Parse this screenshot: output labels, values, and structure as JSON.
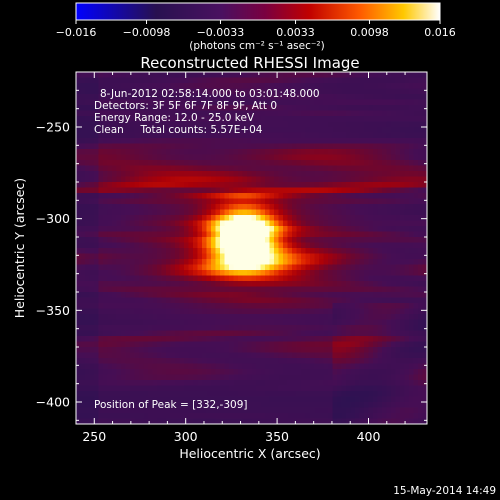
{
  "chart_data": {
    "type": "heatmap",
    "title": "Reconstructed RHESSI Image",
    "xlabel": "Heliocentric X (arcsec)",
    "ylabel": "Heliocentric Y (arcsec)",
    "xlim": [
      240,
      432
    ],
    "ylim": [
      -412,
      -220
    ],
    "x_ticks": [
      250,
      300,
      350,
      400
    ],
    "y_ticks": [
      -250,
      -300,
      -350,
      -400
    ],
    "x_tick_labels": [
      "250",
      "300",
      "350",
      "400"
    ],
    "y_tick_labels": [
      "−250",
      "−300",
      "−350",
      "−400"
    ],
    "annotations": [
      "8-Jun-2012 02:58:14.000 to 03:01:48.000",
      "Detectors: 3F 5F 6F 7F 8F 9F, Att 0",
      "Energy Range: 12.0 - 25.0 keV",
      "Clean     Total counts: 5.57E+04"
    ],
    "peak_label": "Position of Peak = [332,-309]",
    "peak": {
      "x": 332,
      "y": -309
    },
    "colorbar": {
      "min": -0.016,
      "max": 0.016,
      "ticks": [
        -0.016,
        -0.0098,
        -0.0033,
        0.0033,
        0.0098,
        0.016
      ],
      "tick_labels": [
        "−0.016",
        "−0.0098",
        "−0.0033",
        "0.0033",
        "0.0098",
        "0.016"
      ],
      "units": "(photons cm⁻² s⁻¹ asec⁻²)",
      "colors": [
        "#0000ff",
        "#2a1255",
        "#5a0a6a",
        "#8a0033",
        "#c80000",
        "#ff5a00",
        "#ffc800",
        "#ffffff"
      ]
    }
  },
  "footer": {
    "date": "15-May-2014 14:49"
  }
}
